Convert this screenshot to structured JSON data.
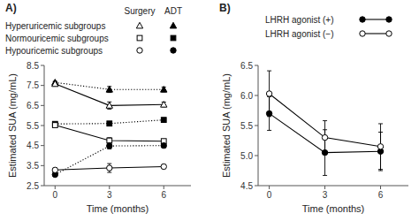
{
  "chart_data": [
    {
      "type": "line",
      "title": "A)",
      "color": "#000000",
      "grid": false,
      "x": [
        0,
        3,
        6
      ],
      "xlim": [
        -0.6,
        7.5
      ],
      "xticks": [
        0,
        3,
        6
      ],
      "ylim": [
        2.5,
        8.5
      ],
      "yticks": [
        2.5,
        3.5,
        4.5,
        5.5,
        6.5,
        7.5,
        8.5
      ],
      "xlabel": "Time (months)",
      "ylabel": "Estimated SUA (mg/mL)",
      "series": [
        {
          "marker": "filled-triangle",
          "line_style": "dotted",
          "values": [
            7.65,
            7.3,
            7.3
          ],
          "errors": [
            0.06,
            0.15,
            0.12
          ]
        },
        {
          "marker": "open-triangle",
          "line_style": "solid",
          "values": [
            7.58,
            6.5,
            6.55
          ],
          "errors": [
            0.1,
            0.18,
            0.12
          ]
        },
        {
          "marker": "filled-square",
          "line_style": "dotted",
          "values": [
            5.58,
            5.6,
            5.78
          ],
          "errors": [
            0.06,
            0.1,
            0.1
          ]
        },
        {
          "marker": "open-square",
          "line_style": "solid",
          "values": [
            5.52,
            4.75,
            4.72
          ],
          "errors": [
            0.08,
            0.14,
            0.1
          ]
        },
        {
          "marker": "filled-circle",
          "line_style": "dotted",
          "values": [
            3.05,
            4.48,
            4.5
          ],
          "errors": [
            0.08,
            0.15,
            0.1
          ]
        },
        {
          "marker": "open-circle",
          "line_style": "solid",
          "values": [
            3.28,
            3.38,
            3.45
          ],
          "errors": [
            0.1,
            0.22,
            0.1
          ]
        }
      ],
      "legend_table": {
        "columns": [
          {
            "label": "Surgery",
            "fill": "open"
          },
          {
            "label": "ADT",
            "fill": "filled"
          }
        ],
        "rows": [
          {
            "label": "Hyperuricemic subgroups",
            "marker": "triangle"
          },
          {
            "label": "Normouricemic subgroups",
            "marker": "square"
          },
          {
            "label": "Hypouricemic subgroups",
            "marker": "circle"
          }
        ]
      }
    },
    {
      "type": "line",
      "title": "B)",
      "color": "#000000",
      "grid": false,
      "x": [
        0,
        3,
        6
      ],
      "xlim": [
        -0.6,
        7.5
      ],
      "xticks": [
        0,
        3,
        6
      ],
      "ylim": [
        4.5,
        6.5
      ],
      "yticks": [
        4.5,
        {
          "value": 5,
          "label": "5.0"
        },
        5.5,
        {
          "value": 6,
          "label": "6.0"
        },
        6.5
      ],
      "xlabel": "Time (months)",
      "ylabel": "Estimated SUA (mg/mL)",
      "series": [
        {
          "name": "LHRH agonist (+)",
          "marker": "filled-circle",
          "line_style": "solid",
          "values": [
            5.7,
            5.05,
            5.07
          ],
          "errors": [
            0.28,
            0.38,
            0.32
          ]
        },
        {
          "name": "LHRH agonist (−)",
          "marker": "open-circle",
          "line_style": "solid",
          "values": [
            6.03,
            5.3,
            5.15
          ],
          "errors": [
            0.38,
            0.28,
            0.38
          ]
        }
      ]
    }
  ]
}
